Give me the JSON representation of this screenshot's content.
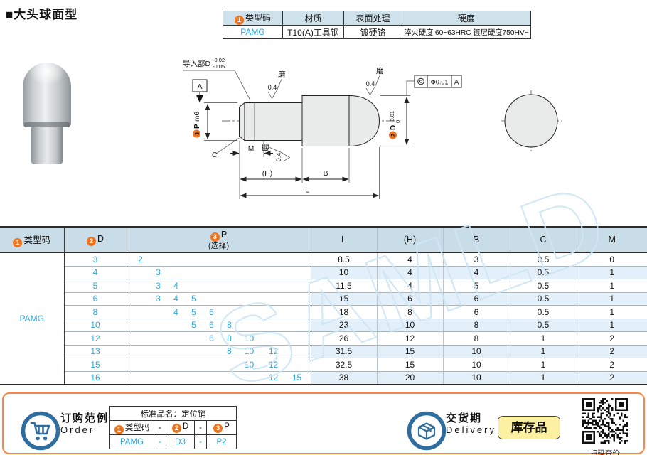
{
  "page": {
    "title": "■大头球面型"
  },
  "colors": {
    "accent_orange": "#f0741d",
    "link_blue": "#29a9e1",
    "table_header_bg": "#c9dde9",
    "row_stripe": "#e4f0f9",
    "frame_orange": "#f5854a",
    "icon_blue": "#2e6d9e",
    "stock_badge_bg": "#fcf1a2"
  },
  "watermark": "SAMLD",
  "spec_table": {
    "headers": [
      {
        "badge": "1",
        "label": "类型码"
      },
      {
        "label": "材质"
      },
      {
        "label": "表面处理"
      },
      {
        "label": "硬度"
      }
    ],
    "row": [
      "PAMG",
      "T10(A)工具钢",
      "镀硬铬",
      "淬火硬度 60~63HRC 镀层硬度750HV~"
    ]
  },
  "drawing": {
    "lead_in_label": "导入部D",
    "lead_in_tol_top": "-0.02",
    "lead_in_tol_bottom": "-0.05",
    "datum_label": "A",
    "finish_value": "0.4",
    "grind_label": "磨",
    "p_badge": "3",
    "p_label": "P",
    "p_fit": "m6",
    "d_badge": "2",
    "d_label": "D",
    "d_tol_top": "0",
    "d_tol_bottom": "-0.01",
    "tolerance_frame": {
      "symbol": "concentricity",
      "value": "Φ0.01",
      "datum": "A"
    },
    "dim_labels": {
      "c": "C",
      "m": "M",
      "h": "(H)",
      "b": "B",
      "l": "L"
    }
  },
  "main_table": {
    "type_code": "PAMG",
    "headers": [
      {
        "badge": "1",
        "label": "类型码"
      },
      {
        "badge": "2",
        "label": "D"
      },
      {
        "badge": "3",
        "label": "P",
        "sub": "(选择)"
      },
      {
        "label": "L"
      },
      {
        "label": "(H)"
      },
      {
        "label": "B"
      },
      {
        "label": "C"
      },
      {
        "label": "M"
      }
    ],
    "p_slot_values": [
      "2",
      "3",
      "4",
      "5",
      "6",
      "8",
      "10",
      "12",
      "15"
    ],
    "rows": [
      {
        "d": "3",
        "p": [
          "2"
        ],
        "l": "8.5",
        "h": "4",
        "b": "3",
        "c": "0.5",
        "m": "0"
      },
      {
        "d": "4",
        "p": [
          "3"
        ],
        "l": "10",
        "h": "4",
        "b": "4",
        "c": "0.5",
        "m": "1"
      },
      {
        "d": "5",
        "p": [
          "3",
          "4"
        ],
        "l": "11.5",
        "h": "4",
        "b": "5",
        "c": "0.5",
        "m": "1"
      },
      {
        "d": "6",
        "p": [
          "3",
          "4",
          "5"
        ],
        "l": "15",
        "h": "6",
        "b": "6",
        "c": "0.5",
        "m": "1"
      },
      {
        "d": "8",
        "p": [
          "4",
          "5",
          "6"
        ],
        "l": "18",
        "h": "8",
        "b": "6",
        "c": "0.5",
        "m": "1"
      },
      {
        "d": "10",
        "p": [
          "5",
          "6",
          "8"
        ],
        "l": "23",
        "h": "10",
        "b": "8",
        "c": "0.5",
        "m": "1"
      },
      {
        "d": "12",
        "p": [
          "6",
          "8",
          "10"
        ],
        "l": "26",
        "h": "12",
        "b": "8",
        "c": "1",
        "m": "2"
      },
      {
        "d": "13",
        "p": [
          "8",
          "10",
          "12"
        ],
        "l": "31.5",
        "h": "15",
        "b": "10",
        "c": "1",
        "m": "2"
      },
      {
        "d": "15",
        "p": [
          "10",
          "12"
        ],
        "l": "32.5",
        "h": "15",
        "b": "10",
        "c": "1",
        "m": "2"
      },
      {
        "d": "16",
        "p": [
          "12",
          "15"
        ],
        "l": "38",
        "h": "20",
        "b": "10",
        "c": "1",
        "m": "2"
      }
    ]
  },
  "order": {
    "title": "订购范例",
    "subtitle": "Order",
    "table_title": "标准品名：定位销",
    "headers": [
      {
        "badge": "1",
        "label": "类型码"
      },
      {
        "label": "-"
      },
      {
        "badge": "2",
        "label": "D"
      },
      {
        "label": "-"
      },
      {
        "badge": "3",
        "label": "P"
      }
    ],
    "values": [
      "PAMG",
      "-",
      "D3",
      "-",
      "P2"
    ]
  },
  "delivery": {
    "title": "交货期",
    "subtitle": "Delivery",
    "stock_badge": "库存品",
    "qr_caption": "扫码查价"
  }
}
